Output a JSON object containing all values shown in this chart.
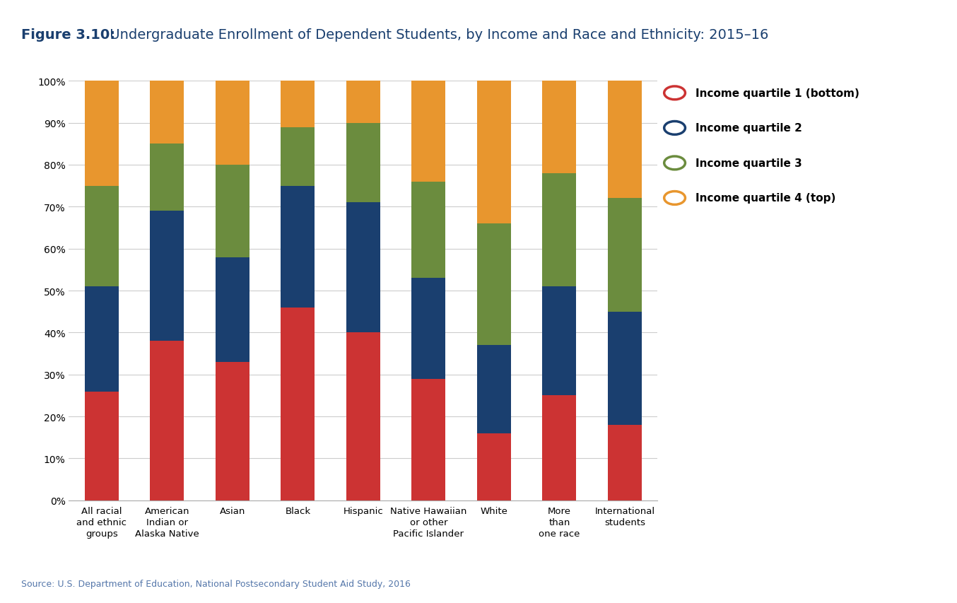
{
  "title_bold": "Figure 3.10:",
  "title_rest": " Undergraduate Enrollment of Dependent Students, by Income and Race and Ethnicity: 2015–16",
  "source": "Source: U.S. Department of Education, National Postsecondary Student Aid Study, 2016",
  "categories": [
    "All racial\nand ethnic\ngroups",
    "American\nIndian or\nAlaska Native",
    "Asian",
    "Black",
    "Hispanic",
    "Native Hawaiian\nor other\nPacific Islander",
    "White",
    "More\nthan\none race",
    "International\nstudents"
  ],
  "q1": [
    26,
    38,
    33,
    46,
    40,
    29,
    16,
    25,
    18
  ],
  "q2": [
    25,
    31,
    25,
    29,
    31,
    24,
    21,
    26,
    27
  ],
  "q3": [
    24,
    16,
    22,
    14,
    19,
    23,
    29,
    27,
    27
  ],
  "q4": [
    25,
    15,
    20,
    11,
    10,
    24,
    34,
    22,
    28
  ],
  "colors": {
    "q1": "#CC3333",
    "q2": "#1A3F6F",
    "q3": "#6B8C3E",
    "q4": "#E8962E"
  },
  "legend_labels": [
    "Income quartile 1 (bottom)",
    "Income quartile 2",
    "Income quartile 3",
    "Income quartile 4 (top)"
  ],
  "legend_edge_colors": [
    "#CC3333",
    "#1A3F6F",
    "#6B8C3E",
    "#E8962E"
  ],
  "header_bg": "#dcdcdc",
  "plot_bg": "#ffffff",
  "fig_bg": "#ffffff",
  "title_color": "#1A3F6F",
  "source_color": "#5577AA",
  "ytick_values": [
    0,
    10,
    20,
    30,
    40,
    50,
    60,
    70,
    80,
    90,
    100
  ],
  "ytick_labels": [
    "0%",
    "10%",
    "20%",
    "30%",
    "40%",
    "50%",
    "60%",
    "70%",
    "80%",
    "90%",
    "100%"
  ]
}
